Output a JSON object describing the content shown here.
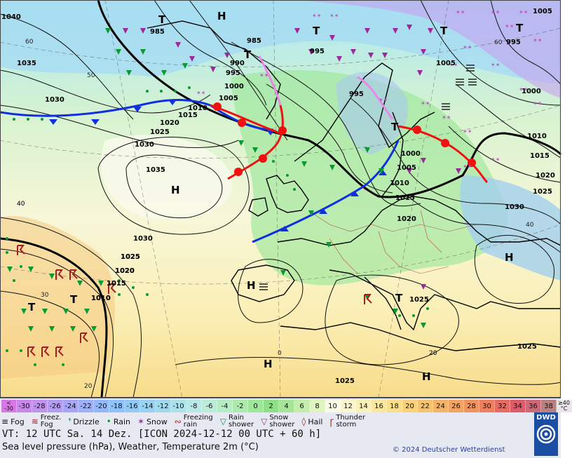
{
  "map": {
    "pressure_systems": [
      {
        "type": "H",
        "label": "H"
      },
      {
        "type": "H",
        "label": "H"
      },
      {
        "type": "H",
        "label": "H"
      },
      {
        "type": "H",
        "label": "H"
      },
      {
        "type": "H",
        "label": "H"
      },
      {
        "type": "H",
        "label": "H"
      },
      {
        "type": "T",
        "label": "T"
      },
      {
        "type": "T",
        "label": "T"
      },
      {
        "type": "T",
        "label": "T"
      },
      {
        "type": "T",
        "label": "T"
      },
      {
        "type": "T",
        "label": "T"
      },
      {
        "type": "T",
        "label": "T"
      },
      {
        "type": "T",
        "label": "T"
      },
      {
        "type": "T",
        "label": "T"
      },
      {
        "type": "T",
        "label": "T"
      }
    ],
    "isobar_labels": [
      "1040",
      "1035",
      "1030",
      "1035",
      "1030",
      "1025",
      "1030",
      "1025",
      "1020",
      "1015",
      "1010",
      "1015",
      "1020",
      "1025",
      "985",
      "985",
      "990",
      "995",
      "1000",
      "1005",
      "1010",
      "1015",
      "1020",
      "1025",
      "1030",
      "995",
      "995",
      "1005",
      "1000",
      "1005",
      "1010",
      "1015",
      "1020",
      "1025",
      "1010",
      "1000",
      "995",
      "1005",
      "1010",
      "1015",
      "1020",
      "1025",
      "1025"
    ],
    "temperature_labels": [
      "60",
      "50",
      "60",
      "40",
      "40",
      "30",
      "20",
      "0",
      "20",
      "20",
      "40"
    ]
  },
  "legend": {
    "scale": [
      {
        "label": "<\n-30",
        "color": "#d878e6"
      },
      {
        "label": "-30",
        "color": "#c88ae8"
      },
      {
        "label": "-28",
        "color": "#c094ea"
      },
      {
        "label": "-26",
        "color": "#b49cee"
      },
      {
        "label": "-24",
        "color": "#a8a6f2"
      },
      {
        "label": "-22",
        "color": "#9eb0f6"
      },
      {
        "label": "-20",
        "color": "#94b8f8"
      },
      {
        "label": "-18",
        "color": "#8ec2f8"
      },
      {
        "label": "-16",
        "color": "#92caf4"
      },
      {
        "label": "-14",
        "color": "#98d2f0"
      },
      {
        "label": "-12",
        "color": "#a2daec"
      },
      {
        "label": "-10",
        "color": "#aee2ea"
      },
      {
        "label": "-8",
        "color": "#b8e8e8"
      },
      {
        "label": "-6",
        "color": "#bcecd8"
      },
      {
        "label": "-4",
        "color": "#b6ecc4"
      },
      {
        "label": "-2",
        "color": "#aeeab0"
      },
      {
        "label": "0",
        "color": "#9ee69a"
      },
      {
        "label": "2",
        "color": "#8ee088"
      },
      {
        "label": "4",
        "color": "#a6e49a"
      },
      {
        "label": "6",
        "color": "#c4ecaa"
      },
      {
        "label": "8",
        "color": "#e0f4c0"
      },
      {
        "label": "10",
        "color": "#fbfce8"
      },
      {
        "label": "12",
        "color": "#fcf6d0"
      },
      {
        "label": "14",
        "color": "#fbf0b8"
      },
      {
        "label": "16",
        "color": "#fae8a0"
      },
      {
        "label": "18",
        "color": "#f9de8c"
      },
      {
        "label": "20",
        "color": "#f8d27c"
      },
      {
        "label": "22",
        "color": "#f6c470"
      },
      {
        "label": "24",
        "color": "#f4b468"
      },
      {
        "label": "26",
        "color": "#f2a464"
      },
      {
        "label": "28",
        "color": "#f09460"
      },
      {
        "label": "30",
        "color": "#ec8060"
      },
      {
        "label": "32",
        "color": "#e46c64"
      },
      {
        "label": "34",
        "color": "#dc5c6a"
      },
      {
        "label": "36",
        "color": "#cc6a7a"
      },
      {
        "label": "38",
        "color": "#b88080"
      },
      {
        "label": "≥40\n°C",
        "color": "#e8e4e8"
      }
    ],
    "symbols": [
      {
        "icon": "fog-icon",
        "label": "Fog"
      },
      {
        "icon": "freezing-fog-icon",
        "label": "Freez.\nFog"
      },
      {
        "icon": "drizzle-icon",
        "label": "Drizzle"
      },
      {
        "icon": "rain-icon",
        "label": "Rain"
      },
      {
        "icon": "snow-icon",
        "label": "Snow"
      },
      {
        "icon": "freezing-rain-icon",
        "label": "Freezing\nrain"
      },
      {
        "icon": "rain-shower-icon",
        "label": "Rain\nshower"
      },
      {
        "icon": "snow-shower-icon",
        "label": "Snow\nshower"
      },
      {
        "icon": "hail-icon",
        "label": "Hail"
      },
      {
        "icon": "thunderstorm-icon",
        "label": "Thunder\nstorm"
      }
    ],
    "valid_time": "VT: 12 UTC Sa.  14 Dez. [ICON 2024-12-12  00 UTC + 60 h]",
    "subtitle": "Sea level pressure (hPa), Weather, Temperature 2m (°C)",
    "copyright": "© 2024 Deutscher Wetterdienst",
    "logo": "DWD"
  }
}
